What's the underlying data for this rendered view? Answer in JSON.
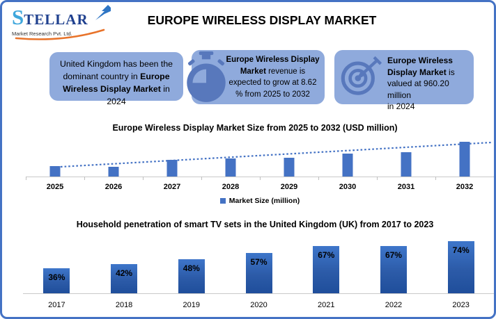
{
  "brand": {
    "name": "STELLAR",
    "tagline": "Market Research Pvt. Ltd."
  },
  "header": {
    "title": "EUROPE WIRELESS DISPLAY MARKET"
  },
  "callouts": [
    {
      "id": "uk-dominant",
      "icon": null,
      "lines": [
        [
          {
            "t": "United Kingdom has been the",
            "b": false
          }
        ],
        [
          {
            "t": "dominant country in ",
            "b": false
          },
          {
            "t": "Europe",
            "b": true
          }
        ],
        [
          {
            "t": "Wireless Display Market",
            "b": true
          },
          {
            "t": " in 2024",
            "b": false
          }
        ]
      ]
    },
    {
      "id": "growth-rate",
      "icon": "stopwatch-icon",
      "lines": [
        [
          {
            "t": "Europe Wireless Display",
            "b": true
          }
        ],
        [
          {
            "t": "Market",
            "b": true
          },
          {
            "t": " revenue is",
            "b": false
          }
        ],
        [
          {
            "t": "expected to grow at 8.62",
            "b": false
          }
        ],
        [
          {
            "t": "% from 2025 to 2032",
            "b": false
          }
        ]
      ]
    },
    {
      "id": "market-value",
      "icon": "target-icon",
      "lines": [
        [
          {
            "t": "Europe Wireless",
            "b": true
          }
        ],
        [
          {
            "t": "Display Market",
            "b": true
          },
          {
            "t": " is",
            "b": false
          }
        ],
        [
          {
            "t": "valued at 960.20 million",
            "b": false
          }
        ],
        [
          {
            "t": "in 2024",
            "b": false
          }
        ]
      ]
    }
  ],
  "colors": {
    "frame_border": "#4472C4",
    "callout_bg": "#8FAADC",
    "icon_blue": "#5878BC",
    "bar_blue": "#4472C4",
    "bar_gradient_top": "#3E76CA",
    "bar_gradient_bottom": "#1F4E9B",
    "axis_gray": "#C9C9C9",
    "logo_blue_light": "#3FA7DC",
    "logo_blue_dark": "#20418F",
    "logo_swoosh_orange": "#E8732A"
  },
  "chart_data": [
    {
      "type": "bar",
      "title": "Europe Wireless Display Market Size from 2025 to 2032 (USD million)",
      "categories": [
        "2025",
        "2026",
        "2027",
        "2028",
        "2029",
        "2030",
        "2031",
        "2032"
      ],
      "series": [
        {
          "name": "Market Size (million)",
          "values": [
            30,
            29,
            48,
            52,
            54,
            66,
            70,
            100
          ]
        }
      ],
      "value_axis_note": "no value axis shown; values are relative bar heights normalized to 2032 = 100",
      "ylim": [
        0,
        100
      ],
      "grid": false,
      "legend_position": "bottom",
      "trendline": "dotted linear trendline rising left to right",
      "bar_color": "#4472C4"
    },
    {
      "type": "bar",
      "title": "Household penetration of smart TV sets in the United Kingdom (UK) from 2017 to 2023",
      "categories": [
        "2017",
        "2018",
        "2019",
        "2020",
        "2021",
        "2022",
        "2023"
      ],
      "values": [
        36,
        42,
        48,
        57,
        67,
        67,
        74
      ],
      "data_labels": [
        "36%",
        "42%",
        "48%",
        "57%",
        "67%",
        "67%",
        "74%"
      ],
      "unit": "%",
      "ylim": [
        0,
        85
      ],
      "grid": false,
      "legend_position": "none"
    }
  ]
}
